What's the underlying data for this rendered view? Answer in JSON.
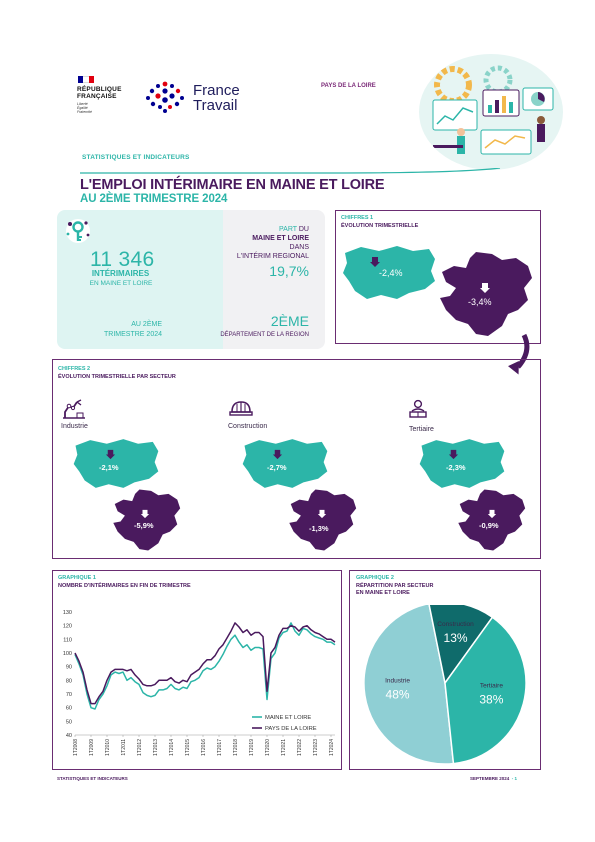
{
  "header": {
    "republic_line1": "RÉPUBLIQUE",
    "republic_line2": "FRANÇAISE",
    "republic_motto": "Liberté\nÉgalité\nFraternité",
    "brand_line1": "France",
    "brand_line2": "Travail",
    "region": "PAYS DE LA LOIRE",
    "section": "STATISTIQUES ET INDICATEURS",
    "title_line1": "L'EMPLOI INTÉRIMAIRE EN MAINE ET LOIRE",
    "title_line2": "AU 2ÈME TRIMESTRE 2024"
  },
  "kpi": {
    "count": "11 346",
    "count_label": "INTÉRIMAIRES",
    "count_sub": "EN MAINE ET LOIRE",
    "quarter_line1": "AU 2ÈME",
    "quarter_line2": "TRIMESTRE 2024",
    "share_word1": "PART",
    "share_word2": "DU",
    "share_dept": "MAINE ET LOIRE",
    "share_in": "DANS",
    "share_scope": "L'INTÉRIM REGIONAL",
    "share_value": "19,7%",
    "rank_value": "2ÈME",
    "rank_label": "DÉPARTEMENT DE LA REGION"
  },
  "chiffres1": {
    "label": "CHIFFRES 1",
    "subtitle": "ÉVOLUTION TRIMESTRIELLE",
    "dept_value": "-2,4%",
    "region_value": "-3,4%"
  },
  "chiffres2": {
    "label": "CHIFFRES 2",
    "subtitle": "ÉVOLUTION TRIMESTRIELLE PAR SECTEUR",
    "sectors": [
      {
        "name": "Industrie",
        "icon": "factory-robot-icon",
        "dept_value": "-2,1%",
        "region_value": "-5,9%"
      },
      {
        "name": "Construction",
        "icon": "hard-hat-icon",
        "dept_value": "-2,7%",
        "region_value": "-1,3%"
      },
      {
        "name": "Tertiaire",
        "icon": "office-worker-icon",
        "dept_value": "-2,3%",
        "region_value": "-0,9%"
      }
    ]
  },
  "graphique1": {
    "label": "GRAPHIQUE 1",
    "subtitle": "NOMBRE D'INTÉRIMAIRES EN FIN DE TRIMESTRE"
  },
  "graphique2": {
    "label": "GRAPHIQUE 2",
    "subtitle_line1": "RÉPARTITION PAR SECTEUR",
    "subtitle_line2": "EN MAINE ET LOIRE"
  },
  "footer": {
    "left": "STATISTIQUES ET INDICATEURS",
    "right": "SEPTEMBRE 2024",
    "page": "- 1"
  },
  "colors": {
    "teal": "#2cb5a8",
    "purple": "#4a1a5e",
    "dark_teal": "#0f6b6b",
    "light_teal": "#8fcfd4"
  },
  "chart_data": [
    {
      "type": "line",
      "ylim": [
        40,
        130
      ],
      "yticks": [
        40,
        50,
        60,
        70,
        80,
        90,
        100,
        110,
        120,
        130
      ],
      "x": [
        "1T2008",
        "2T2008",
        "3T2008",
        "4T2008",
        "1T2009",
        "2T2009",
        "3T2009",
        "4T2009",
        "1T2010",
        "2T2010",
        "3T2010",
        "4T2010",
        "1T2011",
        "2T2011",
        "3T2011",
        "4T2011",
        "1T2012",
        "2T2012",
        "3T2012",
        "4T2012",
        "1T2013",
        "2T2013",
        "3T2013",
        "4T2013",
        "1T2014",
        "2T2014",
        "3T2014",
        "4T2014",
        "1T2015",
        "2T2015",
        "3T2015",
        "4T2015",
        "1T2016",
        "2T2016",
        "3T2016",
        "4T2016",
        "1T2017",
        "2T2017",
        "3T2017",
        "4T2017",
        "1T2018",
        "2T2018",
        "3T2018",
        "4T2018",
        "1T2019",
        "2T2019",
        "3T2019",
        "4T2019",
        "1T2020",
        "2T2020",
        "3T2020",
        "4T2020",
        "1T2021",
        "2T2021",
        "3T2021",
        "4T2021",
        "1T2022",
        "2T2022",
        "3T2022",
        "4T2022",
        "1T2023",
        "2T2023",
        "3T2023",
        "4T2023",
        "1T2024",
        "2T2024"
      ],
      "xtick_labels": [
        "1T2008",
        "1T2009",
        "1T2010",
        "1T2011",
        "1T2012",
        "1T2013",
        "1T2014",
        "1T2015",
        "1T2016",
        "1T2017",
        "1T2018",
        "1T2019",
        "1T2020",
        "1T2021",
        "1T2022",
        "1T2023",
        "1T2024"
      ],
      "series": [
        {
          "name": "MAINE ET LOIRE",
          "color": "#2cb5a8",
          "values": [
            99,
            92,
            84,
            70,
            60,
            59,
            66,
            70,
            76,
            84,
            86,
            85,
            86,
            80,
            82,
            79,
            77,
            71,
            69,
            68,
            69,
            73,
            73,
            74,
            77,
            74,
            73,
            75,
            74,
            79,
            80,
            82,
            87,
            89,
            88,
            90,
            94,
            99,
            105,
            110,
            113,
            108,
            104,
            106,
            102,
            104,
            104,
            103,
            66,
            96,
            100,
            111,
            115,
            116,
            122,
            116,
            113,
            118,
            117,
            114,
            112,
            111,
            110,
            108,
            108,
            106
          ]
        },
        {
          "name": "PAYS DE LA LOIRE",
          "color": "#4a1a5e",
          "values": [
            100,
            94,
            86,
            73,
            63,
            63,
            68,
            72,
            80,
            86,
            88,
            88,
            88,
            87,
            88,
            84,
            81,
            77,
            76,
            76,
            77,
            80,
            80,
            80,
            82,
            79,
            78,
            80,
            79,
            84,
            86,
            88,
            92,
            95,
            95,
            98,
            103,
            106,
            111,
            116,
            122,
            119,
            115,
            117,
            113,
            115,
            115,
            112,
            72,
            100,
            104,
            113,
            118,
            118,
            120,
            119,
            116,
            119,
            120,
            117,
            115,
            114,
            112,
            110,
            110,
            108
          ]
        }
      ]
    },
    {
      "type": "pie",
      "categories": [
        "Industrie",
        "Construction",
        "Tertiaire"
      ],
      "values": [
        48,
        13,
        38
      ],
      "labels": [
        "48%",
        "13%",
        "38%"
      ],
      "colors": [
        "#8fcfd4",
        "#0f6b6b",
        "#2cb5a8"
      ]
    }
  ]
}
